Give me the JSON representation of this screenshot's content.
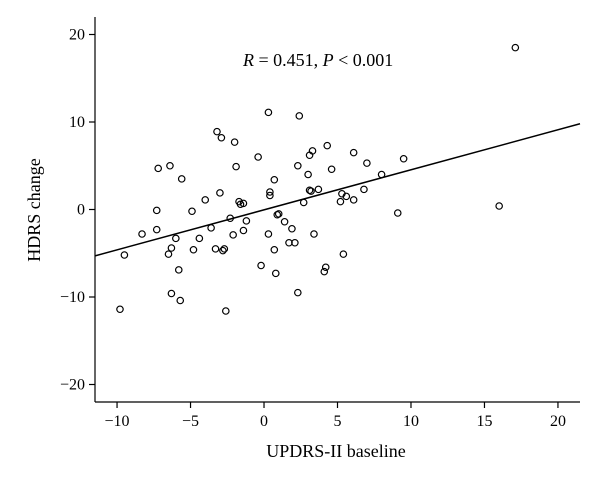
{
  "chart_data": {
    "type": "scatter",
    "xlabel": "UPDRS-II baseline",
    "ylabel": "HDRS change",
    "xlim": [
      -11.5,
      21.5
    ],
    "ylim": [
      -22,
      22
    ],
    "x_ticks": [
      -10,
      -5,
      0,
      5,
      10,
      15,
      20
    ],
    "y_ticks": [
      -20,
      -10,
      0,
      10,
      20
    ],
    "annotation": {
      "r_symbol": "R",
      "r_text": " = 0.451, ",
      "p_symbol": "P",
      "p_text": " < 0.001"
    },
    "fit_line": {
      "x": [
        -11.5,
        21.5
      ],
      "y": [
        -5.3,
        9.8
      ]
    },
    "points": [
      {
        "x": -9.8,
        "y": -11.4
      },
      {
        "x": -9.5,
        "y": -5.2
      },
      {
        "x": -8.3,
        "y": -2.8
      },
      {
        "x": -7.3,
        "y": -2.3
      },
      {
        "x": -7.2,
        "y": 4.7
      },
      {
        "x": -7.3,
        "y": -0.1
      },
      {
        "x": -6.5,
        "y": -5.1
      },
      {
        "x": -6.4,
        "y": 5.0
      },
      {
        "x": -6.3,
        "y": -4.4
      },
      {
        "x": -6.3,
        "y": -9.6
      },
      {
        "x": -6.0,
        "y": -3.3
      },
      {
        "x": -5.8,
        "y": -6.9
      },
      {
        "x": -5.7,
        "y": -10.4
      },
      {
        "x": -5.6,
        "y": 3.5
      },
      {
        "x": -4.9,
        "y": -0.2
      },
      {
        "x": -4.8,
        "y": -4.6
      },
      {
        "x": -4.4,
        "y": -3.3
      },
      {
        "x": -4.0,
        "y": 1.1
      },
      {
        "x": -3.6,
        "y": -2.1
      },
      {
        "x": -3.3,
        "y": -4.5
      },
      {
        "x": -3.2,
        "y": 8.9
      },
      {
        "x": -3.0,
        "y": 1.9
      },
      {
        "x": -2.9,
        "y": 8.2
      },
      {
        "x": -2.8,
        "y": -4.7
      },
      {
        "x": -2.7,
        "y": -4.5
      },
      {
        "x": -2.6,
        "y": -11.6
      },
      {
        "x": -2.3,
        "y": -1.0
      },
      {
        "x": -2.1,
        "y": -2.9
      },
      {
        "x": -2.0,
        "y": 7.7
      },
      {
        "x": -1.9,
        "y": 4.9
      },
      {
        "x": -1.7,
        "y": 0.9
      },
      {
        "x": -1.6,
        "y": 0.6
      },
      {
        "x": -1.4,
        "y": 0.7
      },
      {
        "x": -1.4,
        "y": -2.4
      },
      {
        "x": -1.2,
        "y": -1.3
      },
      {
        "x": -0.4,
        "y": 6.0
      },
      {
        "x": -0.2,
        "y": -6.4
      },
      {
        "x": 0.3,
        "y": 11.1
      },
      {
        "x": 0.3,
        "y": -2.8
      },
      {
        "x": 0.4,
        "y": 1.6
      },
      {
        "x": 0.4,
        "y": 2.0
      },
      {
        "x": 0.7,
        "y": 3.4
      },
      {
        "x": 0.7,
        "y": -4.6
      },
      {
        "x": 0.8,
        "y": -7.3
      },
      {
        "x": 0.9,
        "y": -0.6
      },
      {
        "x": 1.0,
        "y": -0.5
      },
      {
        "x": 1.4,
        "y": -1.4
      },
      {
        "x": 1.7,
        "y": -3.8
      },
      {
        "x": 1.9,
        "y": -2.2
      },
      {
        "x": 2.1,
        "y": -3.8
      },
      {
        "x": 2.3,
        "y": 5.0
      },
      {
        "x": 2.3,
        "y": -9.5
      },
      {
        "x": 2.4,
        "y": 10.7
      },
      {
        "x": 2.7,
        "y": 0.8
      },
      {
        "x": 3.0,
        "y": 4.0
      },
      {
        "x": 3.1,
        "y": 2.2
      },
      {
        "x": 3.1,
        "y": 6.2
      },
      {
        "x": 3.2,
        "y": 2.1
      },
      {
        "x": 3.3,
        "y": 6.7
      },
      {
        "x": 3.4,
        "y": -2.8
      },
      {
        "x": 3.7,
        "y": 2.3
      },
      {
        "x": 4.1,
        "y": -7.1
      },
      {
        "x": 4.2,
        "y": -6.6
      },
      {
        "x": 4.3,
        "y": 7.3
      },
      {
        "x": 4.6,
        "y": 4.6
      },
      {
        "x": 5.2,
        "y": 0.9
      },
      {
        "x": 5.3,
        "y": 1.8
      },
      {
        "x": 5.4,
        "y": -5.1
      },
      {
        "x": 5.6,
        "y": 1.5
      },
      {
        "x": 6.1,
        "y": 1.1
      },
      {
        "x": 6.1,
        "y": 6.5
      },
      {
        "x": 6.8,
        "y": 2.3
      },
      {
        "x": 7.0,
        "y": 5.3
      },
      {
        "x": 8.0,
        "y": 4.0
      },
      {
        "x": 9.1,
        "y": -0.4
      },
      {
        "x": 9.5,
        "y": 5.8
      },
      {
        "x": 16.0,
        "y": 0.4
      },
      {
        "x": 17.1,
        "y": 18.5
      }
    ]
  }
}
